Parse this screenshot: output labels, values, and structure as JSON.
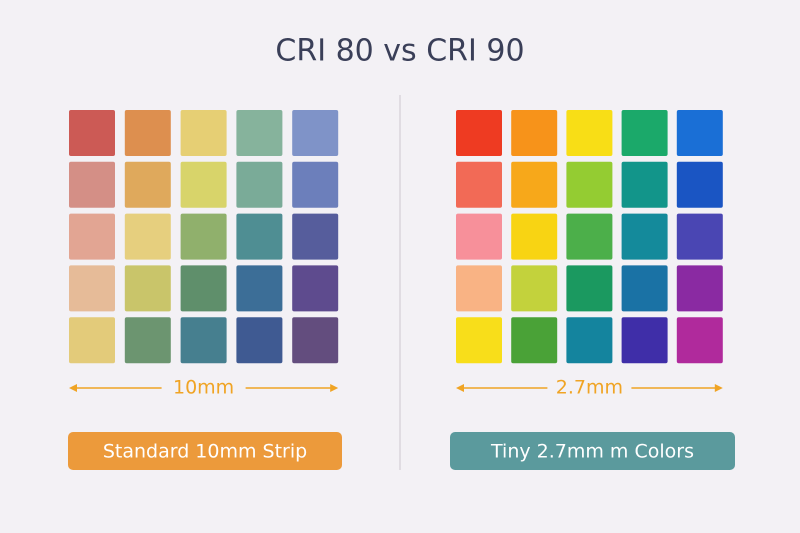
{
  "title": "CRI 80 vs CRI 90",
  "panels": [
    {
      "dimension": "10mm",
      "label": "Standard 10mm Strip",
      "label_color": "#ec9a3b",
      "dimension_color": "#f0a424",
      "swatch_colors": [
        [
          "#cc5a55",
          "#dd8f4f",
          "#e6cf74",
          "#86b39c",
          "#7f93c8"
        ],
        [
          "#d48f86",
          "#dfa95c",
          "#d8d46a",
          "#7aab98",
          "#6c7fbb"
        ],
        [
          "#e2a593",
          "#e6cf7e",
          "#90b06c",
          "#4f8e93",
          "#565d9c"
        ],
        [
          "#e6bb98",
          "#c9c56a",
          "#5f8f6b",
          "#3c6e97",
          "#5e4b8e"
        ],
        [
          "#e3cb7a",
          "#6c9570",
          "#467f8f",
          "#3f5a92",
          "#634d7e"
        ]
      ]
    },
    {
      "dimension": "2.7mm",
      "label": "Tiny 2.7mm m Colors",
      "label_color": "#5b9a9d",
      "dimension_color": "#f0a424",
      "swatch_colors": [
        [
          "#ee3b22",
          "#f7931a",
          "#f8de16",
          "#1ba96a",
          "#1a6fd6"
        ],
        [
          "#f26a56",
          "#f7a81a",
          "#94cc32",
          "#12958a",
          "#1a55c3"
        ],
        [
          "#f7909a",
          "#f8d413",
          "#4caf4a",
          "#148a9b",
          "#4a46b3"
        ],
        [
          "#f9b384",
          "#c3d23c",
          "#1b9960",
          "#1a72a5",
          "#8a2aa2"
        ],
        [
          "#f8de1a",
          "#4aa237",
          "#14849e",
          "#3f2ea8",
          "#b02a9c"
        ]
      ]
    }
  ]
}
